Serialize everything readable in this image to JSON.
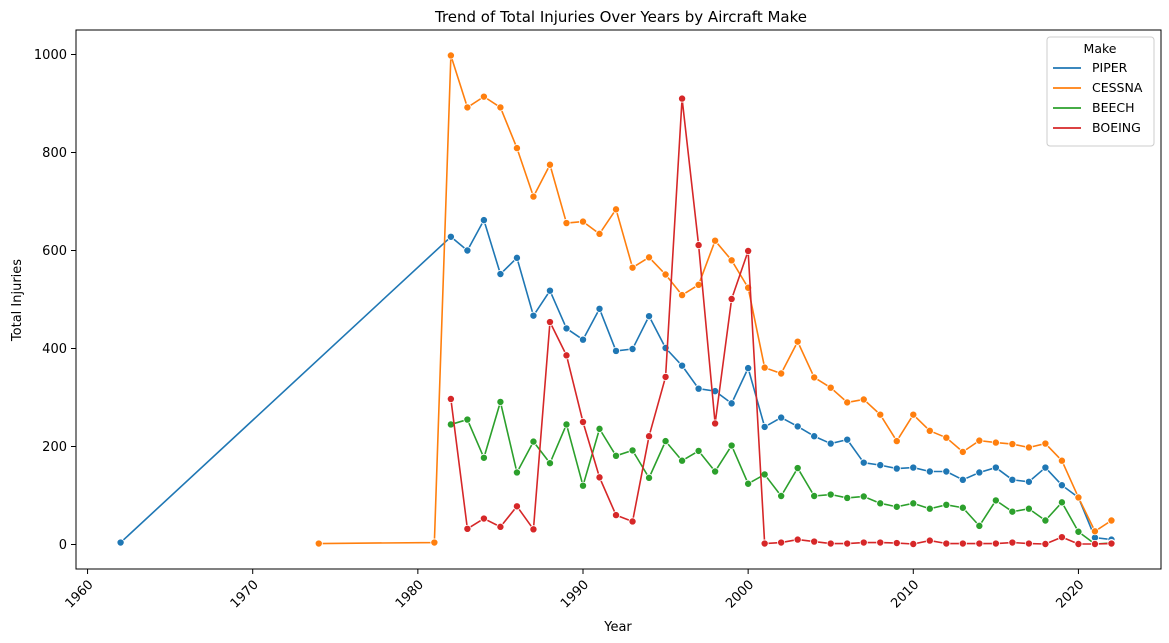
{
  "chart_data": {
    "type": "line",
    "title": "Trend of Total Injuries Over Years by Aircraft Make",
    "xlabel": "Year",
    "ylabel": "Total Injuries",
    "xlim": [
      1959.3,
      2025
    ],
    "ylim": [
      -50,
      1050
    ],
    "xticks": [
      1960,
      1970,
      1980,
      1990,
      2000,
      2010,
      2020
    ],
    "yticks": [
      0,
      200,
      400,
      600,
      800,
      1000
    ],
    "grid": false,
    "legend": {
      "title": "Make",
      "position": "top-right"
    },
    "series": [
      {
        "name": "PIPER",
        "color": "#1f77b4",
        "x": [
          1962,
          1982,
          1983,
          1984,
          1985,
          1986,
          1987,
          1988,
          1989,
          1990,
          1991,
          1992,
          1993,
          1994,
          1995,
          1996,
          1997,
          1998,
          1999,
          2000,
          2001,
          2002,
          2003,
          2004,
          2005,
          2006,
          2007,
          2008,
          2009,
          2010,
          2011,
          2012,
          2013,
          2014,
          2015,
          2016,
          2017,
          2018,
          2019,
          2020,
          2021,
          2022
        ],
        "y": [
          4,
          628,
          600,
          662,
          552,
          585,
          467,
          518,
          441,
          418,
          481,
          395,
          399,
          466,
          401,
          365,
          318,
          313,
          288,
          360,
          240,
          259,
          241,
          221,
          206,
          214,
          167,
          162,
          155,
          157,
          149,
          149,
          132,
          147,
          157,
          132,
          128,
          157,
          121,
          96,
          14,
          10
        ]
      },
      {
        "name": "CESSNA",
        "color": "#ff7f0e",
        "x": [
          1974,
          1981,
          1982,
          1983,
          1984,
          1985,
          1986,
          1987,
          1988,
          1989,
          1990,
          1991,
          1992,
          1993,
          1994,
          1995,
          1996,
          1997,
          1998,
          1999,
          2000,
          2001,
          2002,
          2003,
          2004,
          2005,
          2006,
          2007,
          2008,
          2009,
          2010,
          2011,
          2012,
          2013,
          2014,
          2015,
          2016,
          2017,
          2018,
          2019,
          2020,
          2021,
          2022
        ],
        "y": [
          2,
          4,
          998,
          892,
          914,
          892,
          809,
          710,
          775,
          656,
          659,
          634,
          684,
          565,
          586,
          551,
          509,
          530,
          620,
          580,
          524,
          361,
          349,
          414,
          341,
          320,
          290,
          296,
          265,
          211,
          265,
          232,
          218,
          189,
          212,
          208,
          205,
          198,
          206,
          171,
          96,
          27,
          49
        ]
      },
      {
        "name": "BEECH",
        "color": "#2ca02c",
        "x": [
          1982,
          1983,
          1984,
          1985,
          1986,
          1987,
          1988,
          1989,
          1990,
          1991,
          1992,
          1993,
          1994,
          1995,
          1996,
          1997,
          1998,
          1999,
          2000,
          2001,
          2002,
          2003,
          2004,
          2005,
          2006,
          2007,
          2008,
          2009,
          2010,
          2011,
          2012,
          2013,
          2014,
          2015,
          2016,
          2017,
          2018,
          2019,
          2020,
          2021,
          2022
        ],
        "y": [
          245,
          255,
          177,
          291,
          147,
          210,
          166,
          245,
          120,
          236,
          181,
          192,
          136,
          211,
          171,
          191,
          149,
          202,
          124,
          143,
          99,
          156,
          99,
          102,
          95,
          98,
          84,
          77,
          84,
          73,
          81,
          75,
          38,
          90,
          67,
          73,
          49,
          86,
          26,
          1,
          3
        ]
      },
      {
        "name": "BOEING",
        "color": "#d62728",
        "x": [
          1982,
          1983,
          1984,
          1985,
          1986,
          1987,
          1988,
          1989,
          1990,
          1991,
          1992,
          1993,
          1994,
          1995,
          1996,
          1997,
          1998,
          1999,
          2000,
          2001,
          2002,
          2003,
          2004,
          2005,
          2006,
          2007,
          2008,
          2009,
          2010,
          2011,
          2012,
          2013,
          2014,
          2015,
          2016,
          2017,
          2018,
          2019,
          2020,
          2021,
          2022
        ],
        "y": [
          297,
          32,
          53,
          36,
          78,
          31,
          454,
          386,
          250,
          137,
          60,
          47,
          221,
          342,
          910,
          611,
          247,
          501,
          599,
          2,
          4,
          10,
          6,
          2,
          2,
          4,
          4,
          3,
          1,
          8,
          2,
          2,
          2,
          2,
          4,
          2,
          1,
          15,
          1,
          1,
          2
        ]
      }
    ]
  }
}
